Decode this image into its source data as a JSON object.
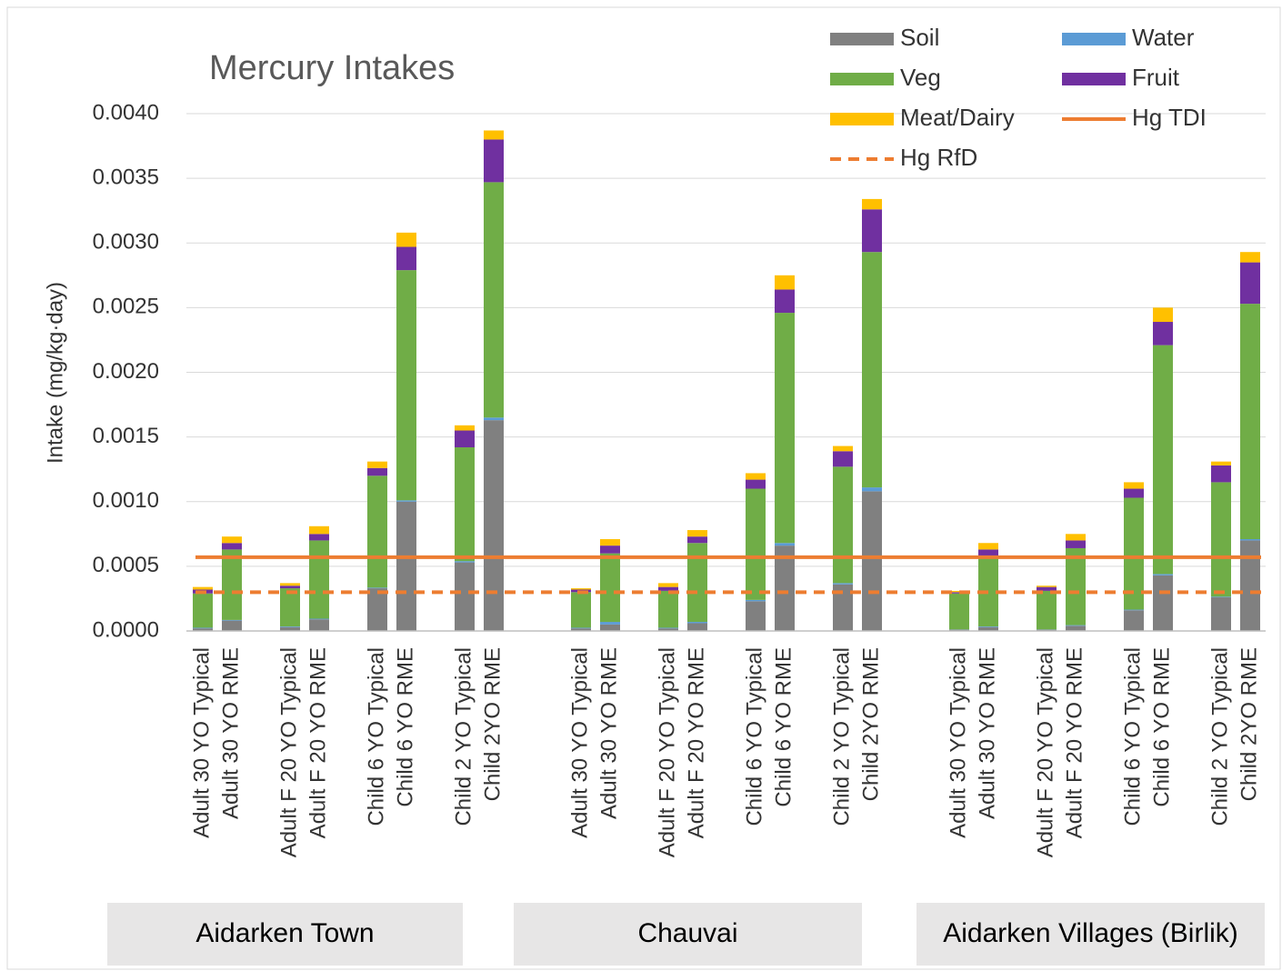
{
  "chart_data": {
    "type": "stacked_bar",
    "title": "Mercury Intakes",
    "y_label": "Intake (mg/kg·day)",
    "ylim": [
      0,
      0.004
    ],
    "yticks": [
      {
        "value": 0,
        "label": "0.0000"
      },
      {
        "value": 0.0005,
        "label": "0.0005"
      },
      {
        "value": 0.001,
        "label": "0.0010"
      },
      {
        "value": 0.0015,
        "label": "0.0015"
      },
      {
        "value": 0.002,
        "label": "0.0020"
      },
      {
        "value": 0.0025,
        "label": "0.0025"
      },
      {
        "value": 0.003,
        "label": "0.0030"
      },
      {
        "value": 0.0035,
        "label": "0.0035"
      },
      {
        "value": 0.004,
        "label": "0.0040"
      }
    ],
    "grid": true,
    "groups": [
      "Aidarken Town",
      "Chauvai",
      "Aidarken Villages (Birlik)"
    ],
    "categories": [
      "Adult 30 YO Typical",
      "Adult 30 YO RME",
      "Adult F 20 YO Typical",
      "Adult F 20 YO RME",
      "Child 6 YO Typical",
      "Child 6 YO RME",
      "Child 2 YO Typical",
      "Child 2YO RME",
      "Adult 30 YO Typical",
      "Adult 30 YO RME",
      "Adult F 20 YO Typical",
      "Adult F 20 YO RME",
      "Child 6 YO Typical",
      "Child 6 YO RME",
      "Child 2 YO Typical",
      "Child 2YO RME",
      "Adult 30 YO Typical",
      "Adult 30 YO RME",
      "Adult F 20 YO Typical",
      "Adult F 20 YO RME",
      "Child 6 YO Typical",
      "Child 6 YO RME",
      "Child 2 YO Typical",
      "Child 2YO RME"
    ],
    "series": [
      {
        "name": "Soil",
        "color": "#808080",
        "values": [
          2e-05,
          8e-05,
          3e-05,
          9e-05,
          0.00033,
          0.001,
          0.00053,
          0.00163,
          2e-05,
          5e-05,
          2e-05,
          6e-05,
          0.00023,
          0.00066,
          0.00036,
          0.00108,
          1e-05,
          3e-05,
          1e-05,
          4e-05,
          0.00016,
          0.00043,
          0.00026,
          0.0007
        ]
      },
      {
        "name": "Water",
        "color": "#5b9bd5",
        "values": [
          5e-06,
          5e-06,
          5e-06,
          5e-06,
          5e-06,
          1e-05,
          1e-05,
          2e-05,
          5e-06,
          2e-05,
          5e-06,
          1e-05,
          1e-05,
          2e-05,
          1e-05,
          3e-05,
          2e-06,
          5e-06,
          2e-06,
          5e-06,
          5e-06,
          1e-05,
          5e-06,
          1e-05
        ]
      },
      {
        "name": "Veg",
        "color": "#70ad47",
        "values": [
          0.000265,
          0.000545,
          0.000295,
          0.000605,
          0.000865,
          0.00178,
          0.00088,
          0.00182,
          0.000275,
          0.00053,
          0.000285,
          0.00061,
          0.00086,
          0.00178,
          0.0009,
          0.00182,
          0.000278,
          0.000535,
          0.000298,
          0.000595,
          0.000865,
          0.00177,
          0.000885,
          0.00182
        ]
      },
      {
        "name": "Fruit",
        "color": "#7030a0",
        "values": [
          3e-05,
          5e-05,
          2e-05,
          5e-05,
          6e-05,
          0.00018,
          0.00013,
          0.00033,
          2e-05,
          6e-05,
          3e-05,
          5e-05,
          7e-05,
          0.00018,
          0.00012,
          0.00033,
          1e-05,
          6e-05,
          3e-05,
          6e-05,
          7e-05,
          0.00018,
          0.00013,
          0.00032
        ]
      },
      {
        "name": "Meat/Dairy",
        "color": "#ffc000",
        "values": [
          2e-05,
          5e-05,
          2e-05,
          6e-05,
          5e-05,
          0.00011,
          4e-05,
          7e-05,
          1e-05,
          5e-05,
          3e-05,
          5e-05,
          5e-05,
          0.00011,
          4e-05,
          8e-05,
          1e-05,
          5e-05,
          1e-05,
          5e-05,
          5e-05,
          0.00011,
          3e-05,
          8e-05
        ]
      }
    ],
    "lines": [
      {
        "name": "Hg TDI",
        "color": "#ed7d31",
        "value": 0.00057,
        "style": "solid"
      },
      {
        "name": "Hg RfD",
        "color": "#ed7d31",
        "value": 0.0003,
        "style": "dashed"
      }
    ]
  }
}
